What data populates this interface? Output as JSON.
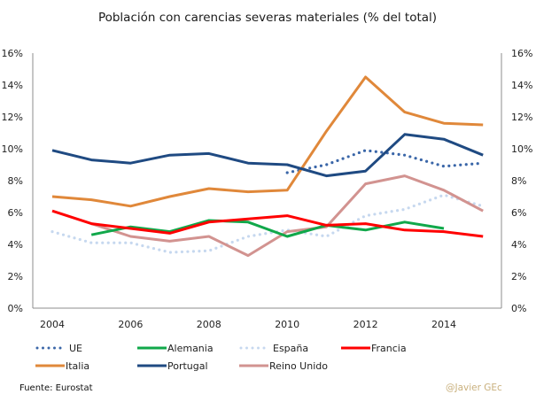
{
  "chart_data": {
    "type": "line",
    "title": "Población con carencias severas materiales (% del total)",
    "xlabel": "",
    "ylabel": "",
    "x": [
      2004,
      2005,
      2006,
      2007,
      2008,
      2009,
      2010,
      2011,
      2012,
      2013,
      2014,
      2015
    ],
    "x_ticks": [
      "2004",
      "2006",
      "2008",
      "2010",
      "2012",
      "2014"
    ],
    "x_tick_values": [
      2004,
      2006,
      2008,
      2010,
      2012,
      2014
    ],
    "ylim": [
      0,
      16
    ],
    "y_ticks": [
      "0%",
      "2%",
      "4%",
      "6%",
      "8%",
      "10%",
      "12%",
      "14%",
      "16%"
    ],
    "y_tick_values": [
      0,
      2,
      4,
      6,
      8,
      10,
      12,
      14,
      16
    ],
    "secondary_y_axis": true,
    "grid": false,
    "legend_position": "bottom",
    "series": [
      {
        "name": "UE",
        "color": "#3a66a8",
        "style": "dotted",
        "values": [
          null,
          null,
          null,
          null,
          null,
          null,
          8.5,
          9.0,
          9.9,
          9.6,
          8.9,
          9.1
        ]
      },
      {
        "name": "Alemania",
        "color": "#10a84a",
        "style": "solid",
        "values": [
          null,
          4.6,
          5.1,
          4.8,
          5.5,
          5.4,
          4.5,
          5.2,
          4.9,
          5.4,
          5.0,
          null
        ]
      },
      {
        "name": "España",
        "color": "#c6d8ef",
        "style": "dotted",
        "values": [
          4.8,
          4.1,
          4.1,
          3.5,
          3.6,
          4.5,
          4.9,
          4.5,
          5.8,
          6.2,
          7.1,
          6.4
        ]
      },
      {
        "name": "Francia",
        "color": "#ff0000",
        "style": "solid",
        "values": [
          6.1,
          5.3,
          5.0,
          4.7,
          5.4,
          5.6,
          5.8,
          5.2,
          5.3,
          4.9,
          4.8,
          4.5
        ]
      },
      {
        "name": "Italia",
        "color": "#e0883a",
        "style": "solid",
        "values": [
          7.0,
          6.8,
          6.4,
          7.0,
          7.5,
          7.3,
          7.4,
          11.1,
          14.5,
          12.3,
          11.6,
          11.5
        ]
      },
      {
        "name": "Portugal",
        "color": "#1f4a82",
        "style": "solid",
        "values": [
          9.9,
          9.3,
          9.1,
          9.6,
          9.7,
          9.1,
          9.0,
          8.3,
          8.6,
          10.9,
          10.6,
          9.6
        ]
      },
      {
        "name": "Reino Unido",
        "color": "#d29390",
        "style": "solid",
        "values": [
          null,
          5.3,
          4.5,
          4.2,
          4.5,
          3.3,
          4.8,
          5.1,
          7.8,
          8.3,
          7.4,
          6.1
        ]
      }
    ]
  },
  "footer": {
    "source": "Fuente: Eurostat",
    "credit": "@Javier GEc"
  }
}
